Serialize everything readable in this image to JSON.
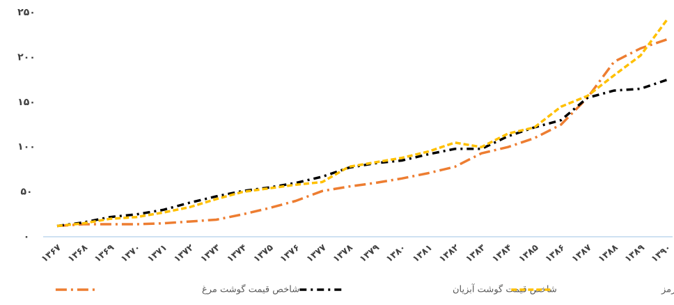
{
  "chart_data": {
    "type": "line",
    "categories": [
      "۱۳۶۷",
      "۱۳۶۸",
      "۱۳۶۹",
      "۱۳۷۰",
      "۱۳۷۱",
      "۱۳۷۲",
      "۱۳۷۳",
      "۱۳۷۴",
      "۱۳۷۵",
      "۱۳۷۶",
      "۱۳۷۷",
      "۱۳۷۸",
      "۱۳۷۹",
      "۱۳۸۰",
      "۱۳۸۱",
      "۱۳۸۲",
      "۱۳۸۳",
      "۱۳۸۴",
      "۱۳۸۵",
      "۱۳۸۶",
      "۱۳۸۷",
      "۱۳۸۸",
      "۱۳۸۹",
      "۱۳۹۰"
    ],
    "series": [
      {
        "name": "شاخص قیمت گوشت مرغ",
        "color": "#ed7d31",
        "dash": "16 6 3 6",
        "values": [
          12,
          14,
          14,
          14,
          15,
          17,
          19,
          25,
          32,
          40,
          51,
          56,
          60,
          65,
          71,
          78,
          93,
          100,
          110,
          125,
          155,
          195,
          210,
          220
        ]
      },
      {
        "name": "شاخص قیمت گوشت آبزیان",
        "color": "#000000",
        "dash": "10 6 3 6",
        "values": [
          12,
          16,
          22,
          25,
          30,
          38,
          45,
          51,
          55,
          60,
          67,
          77,
          82,
          85,
          92,
          98,
          98,
          112,
          122,
          130,
          155,
          163,
          165,
          175
        ]
      },
      {
        "name": "شاخص قیمت گوشت قرمز",
        "color": "#ffc000",
        "dash": "8 4",
        "values": [
          12,
          15,
          20,
          22,
          27,
          33,
          42,
          50,
          54,
          58,
          61,
          78,
          83,
          88,
          95,
          105,
          100,
          115,
          122,
          145,
          157,
          180,
          202,
          242
        ]
      }
    ],
    "ylim": [
      0,
      250
    ],
    "yticks": [
      {
        "value": 0,
        "label": "۰"
      },
      {
        "value": 50,
        "label": "۵۰"
      },
      {
        "value": 100,
        "label": "۱۰۰"
      },
      {
        "value": 150,
        "label": "۱۵۰"
      },
      {
        "value": 200,
        "label": "۲۰۰"
      },
      {
        "value": 250,
        "label": "۲۵۰"
      }
    ],
    "grid": false
  }
}
